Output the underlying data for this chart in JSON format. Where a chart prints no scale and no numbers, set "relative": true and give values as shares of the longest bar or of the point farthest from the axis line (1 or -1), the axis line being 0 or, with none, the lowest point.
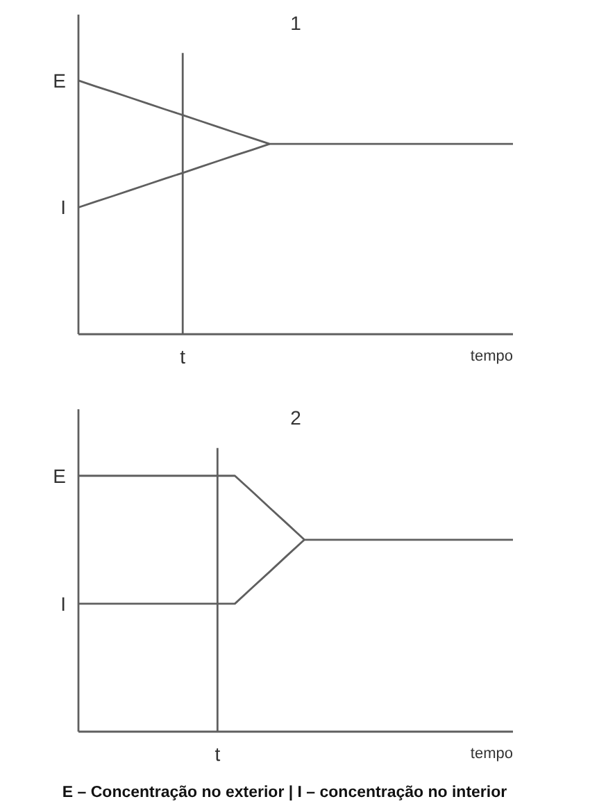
{
  "chart_data": [
    {
      "type": "line",
      "title": "1",
      "relative": true,
      "xlabel": "tempo",
      "marker": "none",
      "line_style": "solid",
      "categories": [
        null,
        null,
        null,
        null,
        null,
        null,
        null,
        null,
        null,
        null,
        null,
        null,
        null,
        null,
        null,
        null,
        null,
        null,
        null,
        null,
        null,
        null,
        null,
        null,
        null,
        null
      ],
      "series": [
        {
          "name": "E",
          "color": "#5f5f5f",
          "values": [
            1,
            0.977,
            0.955,
            0.932,
            0.909,
            0.886,
            0.864,
            0.841,
            0.818,
            0.795,
            0.773,
            0.75,
            0.75,
            0.75,
            0.75,
            0.75,
            0.75,
            0.75,
            0.75,
            0.75,
            0.75,
            0.75,
            0.75,
            0.75,
            0.75,
            0.75
          ]
        },
        {
          "name": "I",
          "color": "#5f5f5f",
          "values": [
            0.5,
            0.523,
            0.545,
            0.568,
            0.591,
            0.614,
            0.636,
            0.659,
            0.682,
            0.705,
            0.727,
            0.75,
            null,
            null,
            null,
            null,
            null,
            null,
            null,
            null,
            null,
            null,
            null,
            null,
            null,
            null
          ]
        }
      ],
      "annotations": [
        "t"
      ]
    },
    {
      "type": "line",
      "title": "2",
      "relative": true,
      "xlabel": "tempo",
      "marker": "none",
      "line_style": "solid",
      "categories": [
        null,
        null,
        null,
        null,
        null,
        null,
        null,
        null,
        null,
        null,
        null,
        null,
        null,
        null,
        null,
        null,
        null,
        null,
        null,
        null,
        null,
        null,
        null,
        null,
        null,
        null
      ],
      "series": [
        {
          "name": "E",
          "color": "#5f5f5f",
          "values": [
            1,
            1,
            1,
            1,
            1,
            1,
            1,
            1,
            1,
            1,
            0.938,
            0.875,
            0.813,
            0.75,
            0.75,
            0.75,
            0.75,
            0.75,
            0.75,
            0.75,
            0.75,
            0.75,
            0.75,
            0.75,
            0.75,
            0.75
          ]
        },
        {
          "name": "I",
          "color": "#5f5f5f",
          "values": [
            0.5,
            0.5,
            0.5,
            0.5,
            0.5,
            0.5,
            0.5,
            0.5,
            0.5,
            0.5,
            0.563,
            0.625,
            0.688,
            0.75,
            null,
            null,
            null,
            null,
            null,
            null,
            null,
            null,
            null,
            null,
            null,
            null
          ]
        }
      ],
      "annotations": [
        "t",
        "E – Concentração no exterior | I – concentração no interior"
      ]
    }
  ]
}
